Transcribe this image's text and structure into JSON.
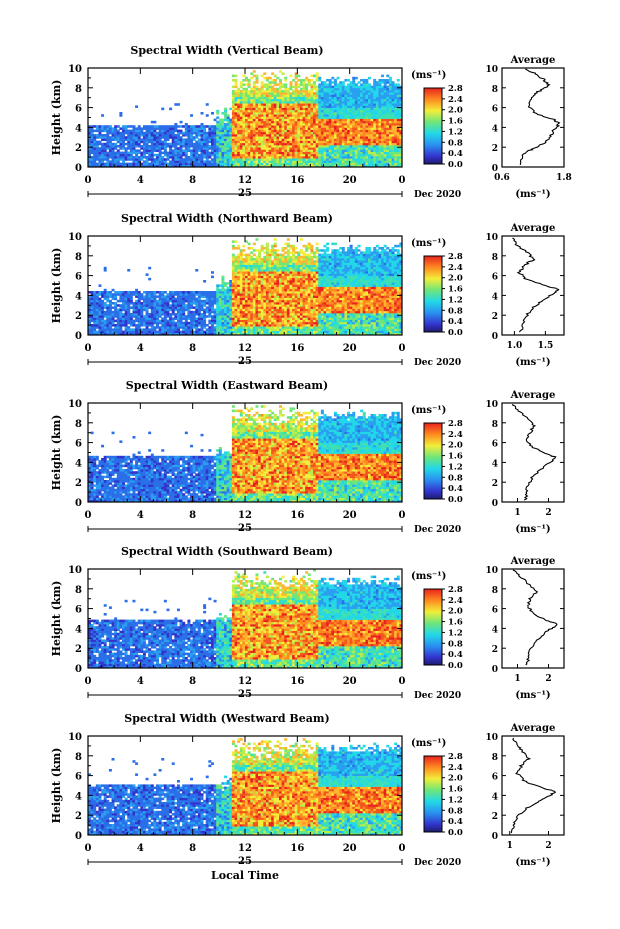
{
  "figure": {
    "y_axis_label": "Height (km)",
    "x_axis_label": "Local Time",
    "day_label": "25",
    "month_label": "Dec 2020",
    "unit_label": "(ms⁻¹)",
    "average_title": "Average",
    "average_unit": "(ms⁻¹)"
  },
  "chart_data": [
    {
      "type": "heatmap",
      "title": "Spectral Width (Vertical Beam)",
      "xlabel": "",
      "ylabel": "Height (km)",
      "x_ticks": [
        "0",
        "4",
        "8",
        "12",
        "16",
        "20",
        "0"
      ],
      "y_ticks": [
        "0",
        "2",
        "4",
        "6",
        "8",
        "10"
      ],
      "xlim": [
        0,
        24
      ],
      "ylim": [
        0,
        10
      ],
      "colorbar": {
        "label": "(ms⁻¹)",
        "range": [
          0.0,
          2.8
        ],
        "ticks": [
          "2.8",
          "2.4",
          "2.0",
          "1.6",
          "1.2",
          "0.8",
          "0.4",
          "0.0"
        ]
      },
      "average_profile": {
        "title": "Average",
        "xlabel": "(ms⁻¹)",
        "xlim": [
          0.6,
          1.8
        ],
        "x_ticks": [
          "0.6",
          "1.8"
        ],
        "points": [
          [
            0.93,
            0.2
          ],
          [
            0.98,
            1.0
          ],
          [
            1.1,
            1.6
          ],
          [
            1.28,
            2.0
          ],
          [
            1.45,
            2.5
          ],
          [
            1.55,
            3.2
          ],
          [
            1.62,
            3.9
          ],
          [
            1.72,
            4.4
          ],
          [
            1.6,
            4.8
          ],
          [
            1.25,
            5.4
          ],
          [
            1.1,
            6.2
          ],
          [
            1.18,
            7.0
          ],
          [
            1.3,
            7.6
          ],
          [
            1.5,
            8.2
          ],
          [
            1.42,
            8.8
          ],
          [
            1.25,
            9.4
          ],
          [
            1.05,
            9.9
          ]
        ]
      }
    },
    {
      "type": "heatmap",
      "title": "Spectral Width (Northward Beam)",
      "xlabel": "",
      "ylabel": "Height (km)",
      "x_ticks": [
        "0",
        "4",
        "8",
        "12",
        "16",
        "20",
        "0"
      ],
      "y_ticks": [
        "0",
        "2",
        "4",
        "6",
        "8",
        "10"
      ],
      "xlim": [
        0,
        24
      ],
      "ylim": [
        0,
        10
      ],
      "colorbar": {
        "label": "(ms⁻¹)",
        "range": [
          0.0,
          2.8
        ],
        "ticks": [
          "2.8",
          "2.4",
          "2.0",
          "1.6",
          "1.2",
          "0.8",
          "0.4",
          "0.0"
        ]
      },
      "average_profile": {
        "title": "Average",
        "xlabel": "(ms⁻¹)",
        "xlim": [
          0.8,
          1.8
        ],
        "x_ticks": [
          "1.0",
          "1.5"
        ],
        "points": [
          [
            1.1,
            0.3
          ],
          [
            1.15,
            1.2
          ],
          [
            1.2,
            2.0
          ],
          [
            1.3,
            2.8
          ],
          [
            1.45,
            3.5
          ],
          [
            1.62,
            4.2
          ],
          [
            1.72,
            4.6
          ],
          [
            1.5,
            5.0
          ],
          [
            1.2,
            5.6
          ],
          [
            1.08,
            6.3
          ],
          [
            1.15,
            7.0
          ],
          [
            1.3,
            7.6
          ],
          [
            1.22,
            8.3
          ],
          [
            1.05,
            9.0
          ],
          [
            0.97,
            9.8
          ]
        ]
      }
    },
    {
      "type": "heatmap",
      "title": "Spectral Width (Eastward Beam)",
      "xlabel": "",
      "ylabel": "Height (km)",
      "x_ticks": [
        "0",
        "4",
        "8",
        "12",
        "16",
        "20",
        "0"
      ],
      "y_ticks": [
        "0",
        "2",
        "4",
        "6",
        "8",
        "10"
      ],
      "xlim": [
        0,
        24
      ],
      "ylim": [
        0,
        10
      ],
      "colorbar": {
        "label": "(ms⁻¹)",
        "range": [
          0.0,
          2.8
        ],
        "ticks": [
          "2.8",
          "2.4",
          "2.0",
          "1.6",
          "1.2",
          "0.8",
          "0.4",
          "0.0"
        ]
      },
      "average_profile": {
        "title": "Average",
        "xlabel": "(ms⁻¹)",
        "xlim": [
          0.5,
          2.5
        ],
        "x_ticks": [
          "1",
          "2"
        ],
        "points": [
          [
            1.25,
            0.2
          ],
          [
            1.3,
            1.0
          ],
          [
            1.35,
            1.8
          ],
          [
            1.5,
            2.6
          ],
          [
            1.75,
            3.3
          ],
          [
            2.05,
            4.0
          ],
          [
            2.25,
            4.5
          ],
          [
            1.9,
            4.9
          ],
          [
            1.5,
            5.5
          ],
          [
            1.3,
            6.2
          ],
          [
            1.4,
            7.0
          ],
          [
            1.55,
            7.7
          ],
          [
            1.35,
            8.4
          ],
          [
            1.05,
            9.2
          ],
          [
            0.85,
            9.9
          ]
        ]
      }
    },
    {
      "type": "heatmap",
      "title": "Spectral Width (Southward Beam)",
      "xlabel": "",
      "ylabel": "Height (km)",
      "x_ticks": [
        "0",
        "4",
        "8",
        "12",
        "16",
        "20",
        "0"
      ],
      "y_ticks": [
        "0",
        "2",
        "4",
        "6",
        "8",
        "10"
      ],
      "xlim": [
        0,
        24
      ],
      "ylim": [
        0,
        10
      ],
      "colorbar": {
        "label": "(ms⁻¹)",
        "range": [
          0.0,
          2.8
        ],
        "ticks": [
          "2.8",
          "2.4",
          "2.0",
          "1.6",
          "1.2",
          "0.8",
          "0.4",
          "0.0"
        ]
      },
      "average_profile": {
        "title": "Average",
        "xlabel": "(ms⁻¹)",
        "xlim": [
          0.5,
          2.5
        ],
        "x_ticks": [
          "1",
          "2"
        ],
        "points": [
          [
            1.3,
            0.3
          ],
          [
            1.35,
            1.0
          ],
          [
            1.4,
            1.6
          ],
          [
            1.5,
            2.4
          ],
          [
            1.75,
            3.2
          ],
          [
            2.05,
            3.9
          ],
          [
            2.3,
            4.4
          ],
          [
            1.95,
            4.8
          ],
          [
            1.55,
            5.4
          ],
          [
            1.35,
            6.2
          ],
          [
            1.4,
            7.0
          ],
          [
            1.6,
            7.7
          ],
          [
            1.4,
            8.4
          ],
          [
            1.1,
            9.2
          ],
          [
            0.85,
            9.9
          ]
        ]
      }
    },
    {
      "type": "heatmap",
      "title": "Spectral Width (Westward Beam)",
      "xlabel": "Local Time",
      "ylabel": "Height (km)",
      "x_ticks": [
        "0",
        "4",
        "8",
        "12",
        "16",
        "20",
        "0"
      ],
      "y_ticks": [
        "0",
        "2",
        "4",
        "6",
        "8",
        "10"
      ],
      "xlim": [
        0,
        24
      ],
      "ylim": [
        0,
        10
      ],
      "colorbar": {
        "label": "(ms⁻¹)",
        "range": [
          0.0,
          2.8
        ],
        "ticks": [
          "2.8",
          "2.4",
          "2.0",
          "1.6",
          "1.2",
          "0.8",
          "0.4",
          "0.0"
        ]
      },
      "average_profile": {
        "title": "Average",
        "xlabel": "(ms⁻¹)",
        "xlim": [
          0.8,
          2.4
        ],
        "x_ticks": [
          "1",
          "2"
        ],
        "points": [
          [
            1.05,
            0.2
          ],
          [
            1.1,
            1.0
          ],
          [
            1.2,
            1.8
          ],
          [
            1.4,
            2.6
          ],
          [
            1.7,
            3.3
          ],
          [
            2.0,
            3.9
          ],
          [
            2.2,
            4.4
          ],
          [
            1.8,
            4.8
          ],
          [
            1.4,
            5.4
          ],
          [
            1.2,
            6.2
          ],
          [
            1.3,
            7.0
          ],
          [
            1.5,
            7.7
          ],
          [
            1.35,
            8.4
          ],
          [
            1.2,
            9.0
          ],
          [
            1.1,
            9.8
          ]
        ]
      }
    }
  ]
}
